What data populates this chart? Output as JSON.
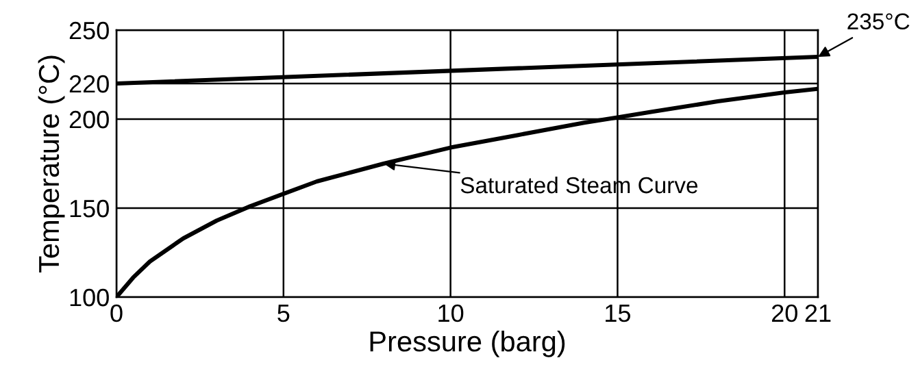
{
  "chart_data": {
    "type": "line",
    "xlabel": "Pressure (barg)",
    "ylabel": "Temperature (°C)",
    "series": [
      {
        "color": "#000000",
        "x": [
          0,
          21
        ],
        "values": [
          220,
          235
        ]
      },
      {
        "color": "#000000",
        "x": [
          0,
          0.5,
          1,
          2,
          3,
          4,
          5,
          6,
          7,
          8,
          10,
          12,
          14,
          15,
          16,
          18,
          20,
          21
        ],
        "values": [
          100,
          111,
          120,
          133,
          143,
          151,
          158,
          165,
          170,
          175,
          184,
          191,
          198,
          201,
          204,
          210,
          215,
          217
        ]
      }
    ],
    "xlim": [
      0,
      21
    ],
    "xticks": [
      0,
      5,
      10,
      15,
      20,
      {
        "value": 21,
        "label": "21"
      }
    ],
    "ylim": [
      100,
      250
    ],
    "yticks": [
      100,
      150,
      200,
      220,
      250
    ],
    "grid": true,
    "marker": "none",
    "line_style": "solid",
    "annotations": [
      {
        "text": "235°C",
        "x": 21,
        "y": 235
      },
      {
        "text": "Saturated Steam Curve",
        "x": 8,
        "y": 175
      }
    ]
  }
}
